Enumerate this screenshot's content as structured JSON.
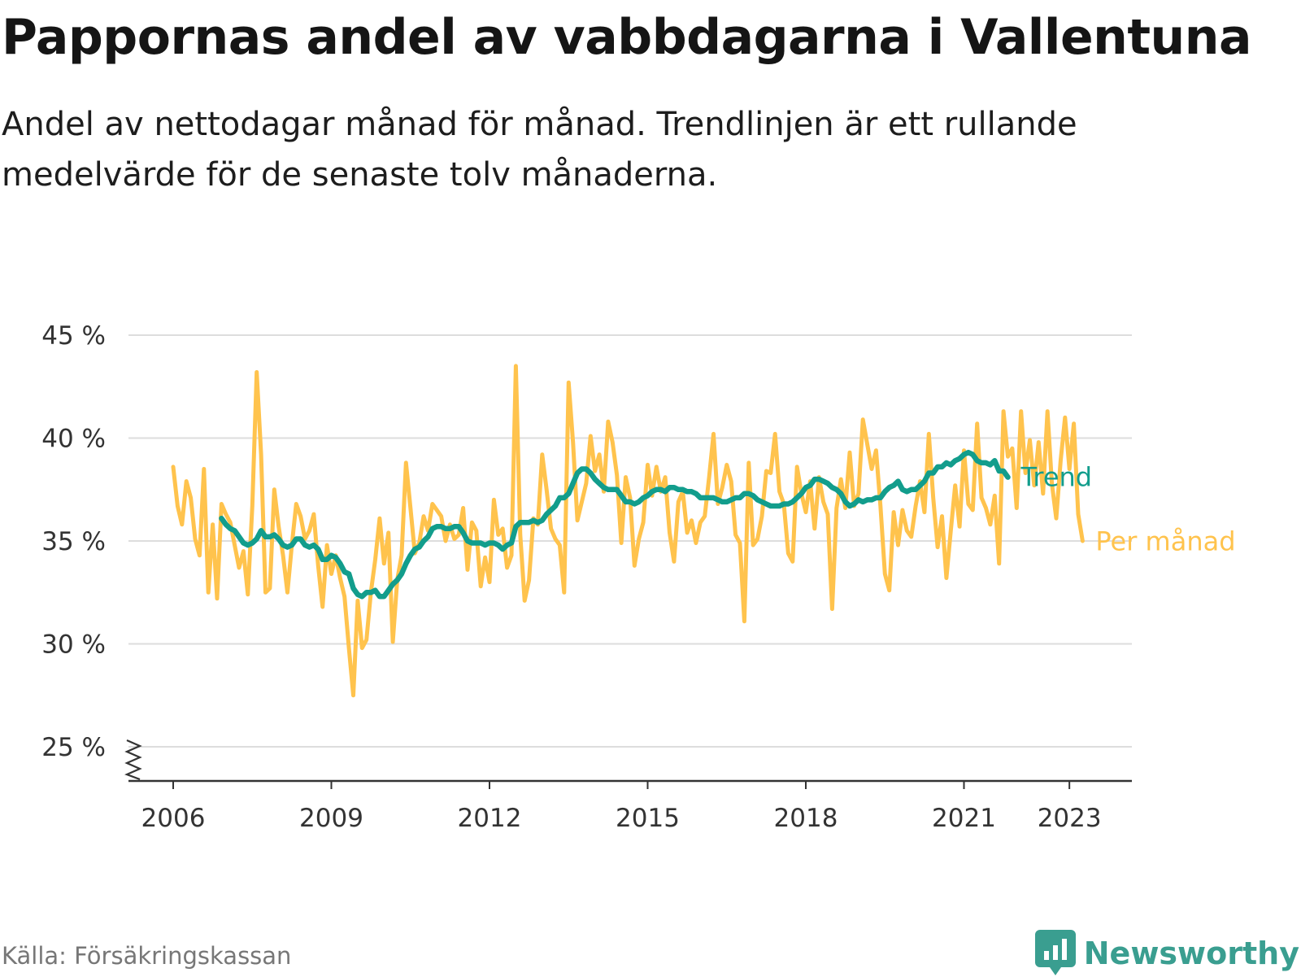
{
  "title": "Pappornas andel av vabbdagarna i Vallentuna",
  "subtitle": "Andel av nettodagar månad för månad. Trendlinjen är ett rullande medelvärde för de senaste tolv månaderna.",
  "source": "Källa: Försäkringskassan",
  "brand": {
    "name": "Newsworthy",
    "icon": "newsworthy-chart-icon"
  },
  "colors": {
    "monthly": "#ffc34d",
    "trend": "#129d8c",
    "grid": "#dddddd",
    "axis": "#333333"
  },
  "chart_data": {
    "type": "line",
    "title": "Pappornas andel av vabbdagarna i Vallentuna",
    "subtitle": "Andel av nettodagar månad för månad. Trendlinjen är ett rullande medelvärde för de senaste tolv månaderna.",
    "ylim": [
      25,
      45
    ],
    "yticks": [
      25,
      30,
      35,
      40,
      45
    ],
    "ytick_labels": [
      "25 %",
      "30 %",
      "35 %",
      "40 %",
      "45 %"
    ],
    "y_axis_break": true,
    "xlim": [
      "2006-01",
      "2023-05"
    ],
    "xticks": [
      "2006-01",
      "2009-01",
      "2012-01",
      "2015-01",
      "2018-01",
      "2021-01",
      "2023-01"
    ],
    "xtick_labels": [
      "2006",
      "2009",
      "2012",
      "2015",
      "2018",
      "2021",
      "2023"
    ],
    "grid": true,
    "legend": "line-end labels (right)",
    "series": [
      {
        "name": "Per månad",
        "start": "2006-01",
        "values": [
          38.6,
          36.7,
          35.8,
          37.9,
          37.1,
          35.1,
          34.3,
          38.5,
          32.5,
          35.8,
          32.2,
          36.8,
          36.3,
          35.9,
          34.8,
          33.7,
          34.5,
          32.4,
          36.7,
          43.2,
          39.2,
          32.5,
          32.7,
          37.5,
          35.7,
          34.3,
          32.5,
          34.8,
          36.8,
          36.2,
          35.1,
          35.5,
          36.3,
          33.8,
          31.8,
          34.8,
          33.4,
          34.3,
          33.2,
          32.3,
          29.8,
          27.5,
          32.1,
          29.8,
          30.2,
          32.5,
          34.1,
          36.1,
          33.9,
          35.4,
          30.1,
          33.1,
          34.3,
          38.8,
          36.6,
          34.4,
          34.9,
          36.2,
          35.5,
          36.8,
          36.5,
          36.2,
          35.0,
          35.8,
          35.1,
          35.3,
          36.6,
          33.6,
          35.9,
          35.5,
          32.8,
          34.2,
          33.0,
          37.0,
          35.3,
          35.6,
          33.7,
          34.3,
          43.5,
          35.3,
          32.1,
          33.1,
          36.1,
          35.8,
          39.2,
          37.5,
          35.6,
          35.1,
          34.8,
          32.5,
          42.7,
          39.8,
          36.0,
          36.9,
          37.8,
          40.1,
          38.4,
          39.2,
          37.4,
          40.8,
          39.8,
          38.2,
          34.9,
          38.1,
          37.1,
          33.8,
          35.1,
          35.9,
          38.7,
          37.2,
          38.6,
          37.4,
          38.1,
          35.4,
          34.0,
          36.9,
          37.4,
          35.4,
          36.0,
          34.9,
          35.9,
          36.2,
          38.1,
          40.2,
          36.8,
          37.6,
          38.7,
          37.9,
          35.3,
          34.9,
          31.1,
          38.8,
          34.8,
          35.1,
          36.2,
          38.4,
          38.3,
          40.2,
          37.4,
          36.8,
          34.4,
          34.0,
          38.6,
          37.3,
          36.4,
          37.9,
          35.6,
          38.1,
          36.9,
          36.3,
          31.7,
          36.6,
          38.0,
          36.6,
          39.3,
          36.7,
          37.3,
          40.9,
          39.7,
          38.5,
          39.4,
          36.7,
          33.4,
          32.6,
          36.4,
          34.8,
          36.5,
          35.5,
          35.2,
          36.7,
          37.9,
          36.4,
          40.2,
          37.1,
          34.7,
          36.2,
          33.2,
          35.5,
          37.7,
          35.7,
          39.4,
          36.8,
          36.5,
          40.7,
          37.1,
          36.6,
          35.8,
          37.2,
          33.9,
          41.3,
          39.1,
          39.5,
          36.6,
          41.3,
          38.3,
          39.9,
          37.7,
          39.8,
          37.3,
          41.3,
          37.8,
          36.1,
          38.9,
          41.0,
          38.5,
          40.7,
          36.3,
          35.0
        ]
      },
      {
        "name": "Trend",
        "start": "2006-12",
        "values": [
          36.1,
          35.8,
          35.6,
          35.5,
          35.2,
          34.9,
          34.8,
          34.9,
          35.1,
          35.5,
          35.2,
          35.2,
          35.3,
          35.1,
          34.8,
          34.7,
          34.8,
          35.1,
          35.1,
          34.8,
          34.7,
          34.8,
          34.6,
          34.1,
          34.1,
          34.3,
          34.2,
          33.9,
          33.5,
          33.4,
          32.7,
          32.4,
          32.3,
          32.5,
          32.5,
          32.6,
          32.3,
          32.3,
          32.6,
          32.9,
          33.1,
          33.4,
          33.9,
          34.3,
          34.6,
          34.7,
          35.0,
          35.2,
          35.6,
          35.7,
          35.7,
          35.6,
          35.6,
          35.7,
          35.7,
          35.4,
          35.0,
          34.9,
          34.9,
          34.9,
          34.8,
          34.9,
          34.9,
          34.8,
          34.6,
          34.8,
          34.9,
          35.7,
          35.9,
          35.9,
          35.9,
          36.0,
          35.9,
          36.0,
          36.3,
          36.5,
          36.7,
          37.1,
          37.1,
          37.3,
          37.8,
          38.3,
          38.5,
          38.5,
          38.3,
          38.0,
          37.8,
          37.6,
          37.5,
          37.5,
          37.5,
          37.2,
          36.9,
          36.9,
          36.8,
          36.9,
          37.1,
          37.2,
          37.4,
          37.5,
          37.5,
          37.4,
          37.6,
          37.6,
          37.5,
          37.5,
          37.4,
          37.4,
          37.3,
          37.1,
          37.1,
          37.1,
          37.1,
          37.0,
          36.9,
          36.9,
          37.0,
          37.1,
          37.1,
          37.3,
          37.3,
          37.2,
          37.0,
          36.9,
          36.8,
          36.7,
          36.7,
          36.7,
          36.8,
          36.8,
          36.9,
          37.1,
          37.3,
          37.6,
          37.7,
          38.0,
          38.0,
          37.9,
          37.8,
          37.6,
          37.5,
          37.3,
          36.9,
          36.7,
          36.8,
          37.0,
          36.9,
          37.0,
          37.0,
          37.1,
          37.1,
          37.4,
          37.6,
          37.7,
          37.9,
          37.5,
          37.4,
          37.5,
          37.5,
          37.7,
          37.9,
          38.3,
          38.3,
          38.6,
          38.6,
          38.8,
          38.7,
          38.9,
          39.0,
          39.2,
          39.3,
          39.2,
          38.9,
          38.8,
          38.8,
          38.7,
          38.9,
          38.4,
          38.4,
          38.1
        ]
      }
    ]
  }
}
